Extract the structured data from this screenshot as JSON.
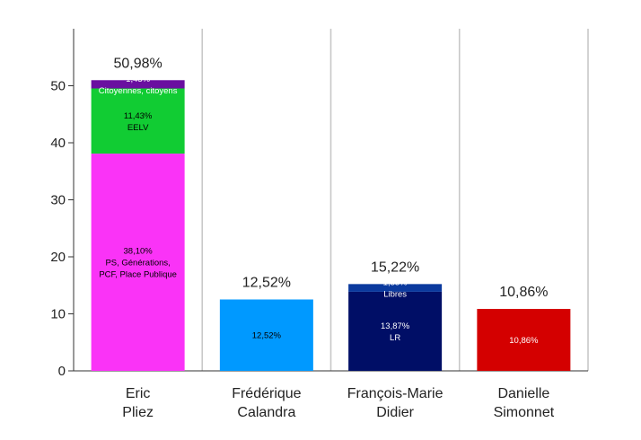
{
  "chart_data": {
    "type": "bar",
    "stacked": true,
    "ylim": [
      0,
      60
    ],
    "yticks": [
      0,
      10,
      20,
      30,
      40,
      50
    ],
    "grid": "vertical-separators",
    "categories": [
      {
        "lines": [
          "Eric",
          "Pliez"
        ],
        "total_label": "50,98%"
      },
      {
        "lines": [
          "Frédérique",
          "Calandra"
        ],
        "total_label": "12,52%"
      },
      {
        "lines": [
          "François-Marie",
          "Didier"
        ],
        "total_label": "15,22%"
      },
      {
        "lines": [
          "Danielle",
          "Simonnet"
        ],
        "total_label": "10,86%"
      }
    ],
    "stacks": [
      [
        {
          "value": 38.1,
          "color": "#fa33f7",
          "text_color": "#000000",
          "lines": [
            "38,10%",
            "PS, Générations,",
            "PCF, Place Publique"
          ]
        },
        {
          "value": 11.43,
          "color": "#11cc33",
          "text_color": "#000000",
          "lines": [
            "11,43%",
            "EELV"
          ]
        },
        {
          "value": 1.45,
          "color": "#6a0fa0",
          "text_color": "#ffffff",
          "lines": [
            "1,45%",
            "Citoyennes, citoyens"
          ]
        }
      ],
      [
        {
          "value": 12.52,
          "color": "#0099ff",
          "text_color": "#000000",
          "lines": [
            "12,52%"
          ]
        }
      ],
      [
        {
          "value": 13.87,
          "color": "#000e66",
          "text_color": "#ffffff",
          "lines": [
            "13,87%",
            "LR"
          ]
        },
        {
          "value": 1.35,
          "color": "#0b3a9e",
          "text_color": "#ffffff",
          "lines": [
            "1,35%",
            "Libres"
          ]
        }
      ],
      [
        {
          "value": 10.86,
          "color": "#d40000",
          "text_color": "#ffffff",
          "lines": [
            "10,86%"
          ]
        }
      ]
    ]
  }
}
